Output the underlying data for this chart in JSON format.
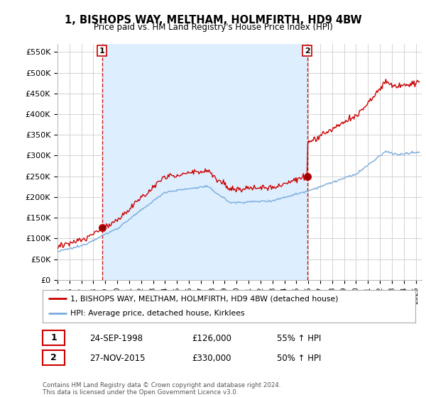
{
  "title": "1, BISHOPS WAY, MELTHAM, HOLMFIRTH, HD9 4BW",
  "subtitle": "Price paid vs. HM Land Registry's House Price Index (HPI)",
  "ylabel_ticks": [
    "£0",
    "£50K",
    "£100K",
    "£150K",
    "£200K",
    "£250K",
    "£300K",
    "£350K",
    "£400K",
    "£450K",
    "£500K",
    "£550K"
  ],
  "ytick_values": [
    0,
    50000,
    100000,
    150000,
    200000,
    250000,
    300000,
    350000,
    400000,
    450000,
    500000,
    550000
  ],
  "ylim": [
    0,
    570000
  ],
  "xlim_start": 1995.0,
  "xlim_end": 2025.5,
  "sale1_date": 1998.73,
  "sale1_price": 126000,
  "sale2_date": 2015.9,
  "sale2_price": 330000,
  "legend_line1": "1, BISHOPS WAY, MELTHAM, HOLMFIRTH, HD9 4BW (detached house)",
  "legend_line2": "HPI: Average price, detached house, Kirklees",
  "sale1_text": "24-SEP-1998",
  "sale1_price_text": "£126,000",
  "sale1_hpi_text": "55% ↑ HPI",
  "sale2_text": "27-NOV-2015",
  "sale2_price_text": "£330,000",
  "sale2_hpi_text": "50% ↑ HPI",
  "footnote": "Contains HM Land Registry data © Crown copyright and database right 2024.\nThis data is licensed under the Open Government Licence v3.0.",
  "line_color_red": "#cc0000",
  "line_color_blue": "#7aacdc",
  "shade_color": "#ddeeff",
  "bg_color": "#ffffff",
  "grid_color": "#cccccc"
}
